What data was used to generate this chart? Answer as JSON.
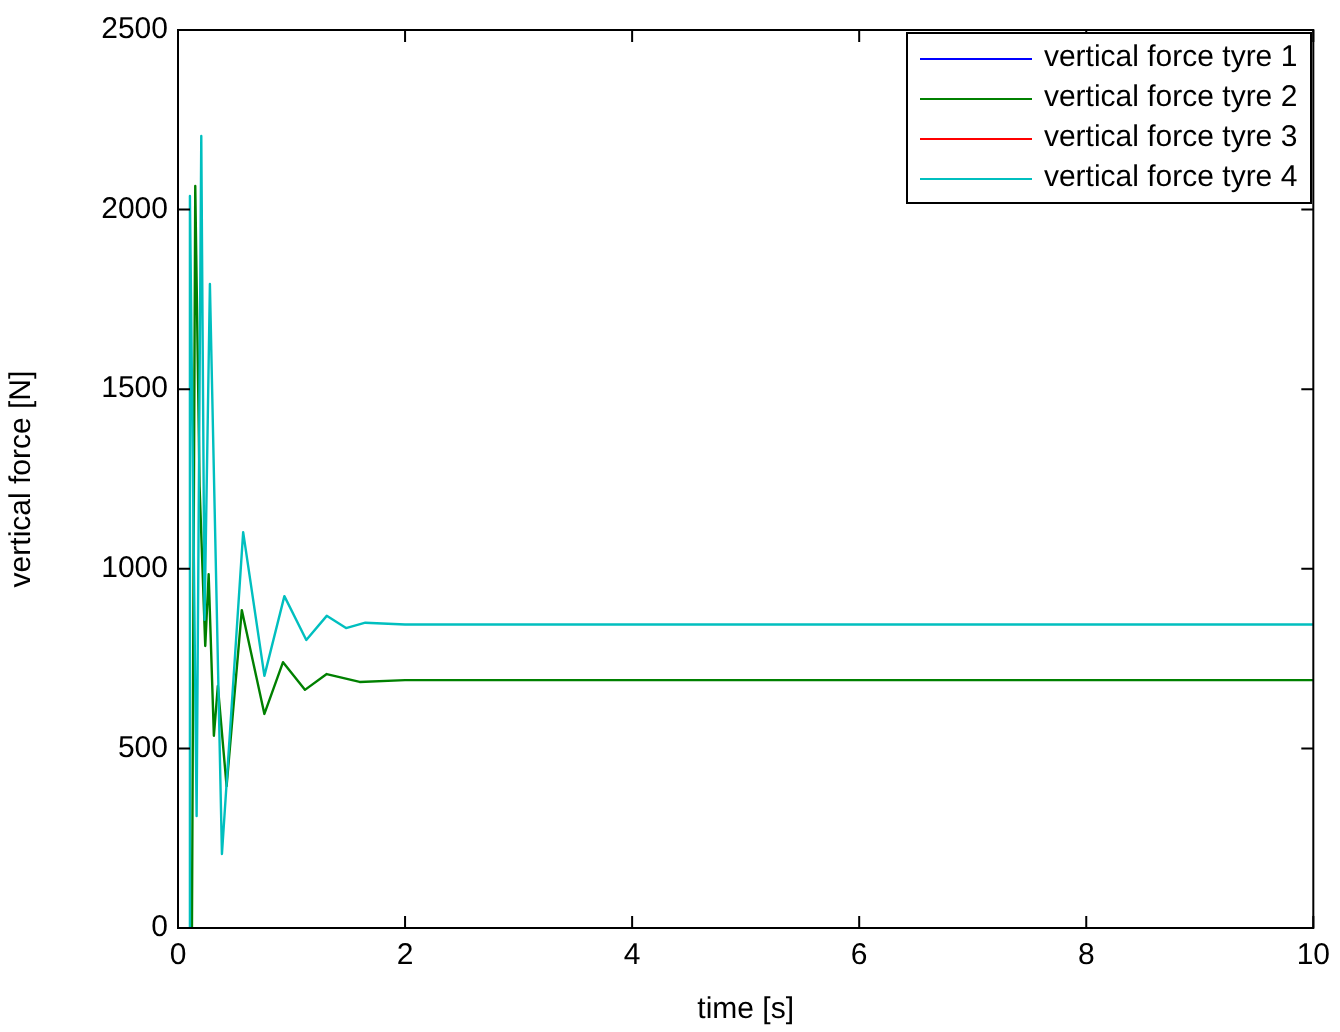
{
  "chart_data": {
    "type": "line",
    "xlabel": "time [s]",
    "ylabel": "vertical force [N]",
    "xlim": [
      0,
      10
    ],
    "ylim": [
      0,
      2500
    ],
    "xticks": [
      0,
      2,
      4,
      6,
      8,
      10
    ],
    "yticks": [
      0,
      500,
      1000,
      1500,
      2000,
      2500
    ],
    "grid": false,
    "legend": "top right",
    "marker": "none",
    "line_style": "solid",
    "series": [
      {
        "name": "vertical force tyre 1",
        "color": "#0000ff"
      },
      {
        "name": "vertical force tyre 2",
        "color": "#008000",
        "x": [
          0.1,
          0.123,
          0.152,
          0.19,
          0.24,
          0.27,
          0.316,
          0.351,
          0.428,
          0.562,
          0.761,
          0.925,
          1.118,
          1.31,
          1.6,
          2.0,
          10
        ],
        "values": [
          0,
          0,
          2066,
          1230,
          785,
          985,
          535,
          674,
          395,
          885,
          596,
          740,
          663,
          707,
          685,
          690,
          690
        ]
      },
      {
        "name": "vertical force tyre 3",
        "color": "#ff0000"
      },
      {
        "name": "vertical force tyre 4",
        "color": "#00bfbf",
        "x": [
          0.1,
          0.105,
          0.164,
          0.205,
          0.234,
          0.281,
          0.387,
          0.574,
          0.761,
          0.937,
          1.13,
          1.31,
          1.48,
          1.65,
          2.0,
          10
        ],
        "values": [
          0,
          2038,
          312,
          2205,
          858,
          1793,
          206,
          1102,
          702,
          924,
          802,
          869,
          835,
          850,
          845,
          845
        ]
      }
    ]
  }
}
